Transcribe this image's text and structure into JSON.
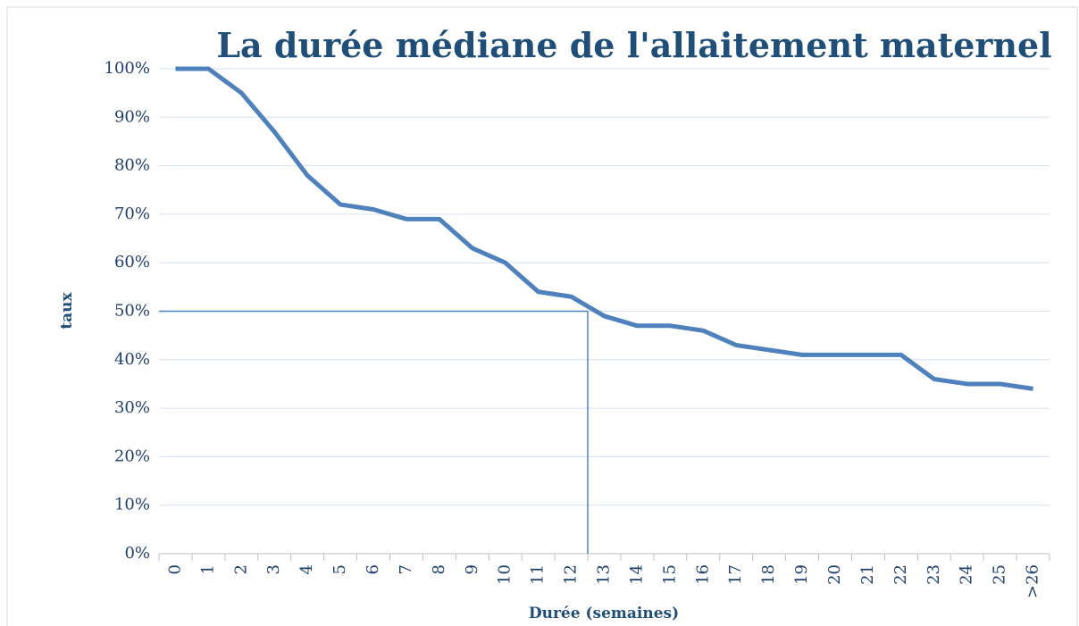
{
  "chart_data": {
    "type": "line",
    "title": "La durée médiane de l'allaitement maternel",
    "x_label": "Durée (semaines)",
    "y_label": "taux",
    "categories": [
      "0",
      "1",
      "2",
      "3",
      "4",
      "5",
      "6",
      "7",
      "8",
      "9",
      "10",
      "11",
      "12",
      "13",
      "14",
      "15",
      "16",
      "17",
      "18",
      "19",
      "20",
      "21",
      "22",
      "23",
      "24",
      "25",
      ">26"
    ],
    "series": [
      {
        "name": "taux",
        "color": "#4f81bd",
        "values": [
          100,
          100,
          95,
          87,
          78,
          72,
          71,
          69,
          69,
          63,
          60,
          54,
          53,
          49,
          47,
          47,
          46,
          43,
          42,
          41,
          41,
          41,
          41,
          36,
          35,
          35,
          34
        ]
      }
    ],
    "median_line": {
      "category_position": 12.5,
      "value": 50,
      "color": "#4f81bd"
    },
    "ylim": [
      0,
      100
    ],
    "yticks": [
      {
        "value": 0,
        "label": "0%"
      },
      {
        "value": 10,
        "label": "10%"
      },
      {
        "value": 20,
        "label": "20%"
      },
      {
        "value": 30,
        "label": "30%"
      },
      {
        "value": 40,
        "label": "40%"
      },
      {
        "value": 50,
        "label": "50%"
      },
      {
        "value": 60,
        "label": "60%"
      },
      {
        "value": 70,
        "label": "70%"
      },
      {
        "value": 80,
        "label": "80%"
      },
      {
        "value": 90,
        "label": "90%"
      },
      {
        "value": 100,
        "label": "100%"
      }
    ],
    "grid": true
  }
}
